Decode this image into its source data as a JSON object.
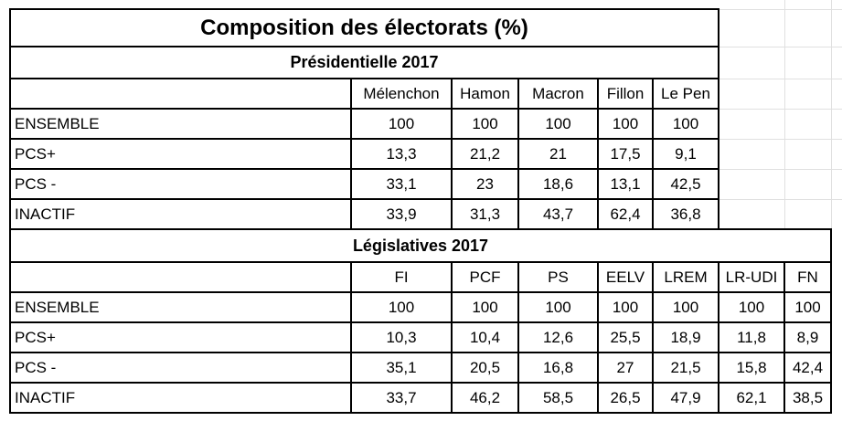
{
  "title": "Composition des électorats (%)",
  "presidentielle": {
    "heading": "Présidentielle 2017",
    "columns": [
      "Mélenchon",
      "Hamon",
      "Macron",
      "Fillon",
      "Le Pen"
    ],
    "rows": [
      {
        "label": "ENSEMBLE",
        "values": [
          "100",
          "100",
          "100",
          "100",
          "100"
        ]
      },
      {
        "label": "PCS+",
        "values": [
          "13,3",
          "21,2",
          "21",
          "17,5",
          "9,1"
        ]
      },
      {
        "label": "PCS -",
        "values": [
          "33,1",
          "23",
          "18,6",
          "13,1",
          "42,5"
        ]
      },
      {
        "label": "INACTIF",
        "values": [
          "33,9",
          "31,3",
          "43,7",
          "62,4",
          "36,8"
        ]
      }
    ]
  },
  "legislatives": {
    "heading": "Législatives 2017",
    "columns": [
      "FI",
      "PCF",
      "PS",
      "EELV",
      "LREM",
      "LR-UDI",
      "FN"
    ],
    "rows": [
      {
        "label": "ENSEMBLE",
        "values": [
          "100",
          "100",
          "100",
          "100",
          "100",
          "100",
          "100"
        ]
      },
      {
        "label": "PCS+",
        "values": [
          "10,3",
          "10,4",
          "12,6",
          "25,5",
          "18,9",
          "11,8",
          "8,9"
        ]
      },
      {
        "label": "PCS -",
        "values": [
          "35,1",
          "20,5",
          "16,8",
          "27",
          "21,5",
          "15,8",
          "42,4"
        ]
      },
      {
        "label": "INACTIF",
        "values": [
          "33,7",
          "46,2",
          "58,5",
          "26,5",
          "47,9",
          "62,1",
          "38,5"
        ]
      }
    ]
  }
}
